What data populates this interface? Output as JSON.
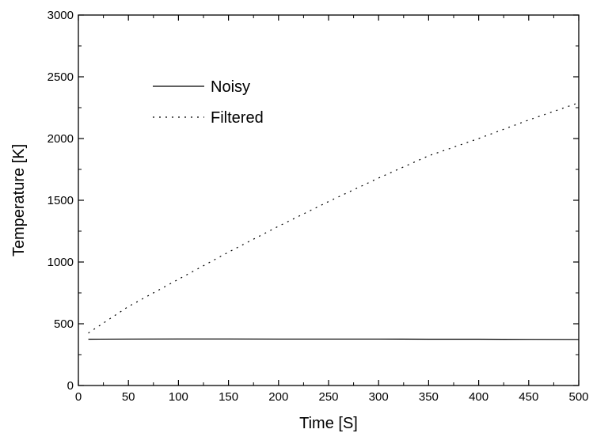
{
  "chart_data": {
    "type": "line",
    "title": "",
    "xlabel": "Time [S]",
    "ylabel": "Temperature [K]",
    "xlim": [
      0,
      500
    ],
    "ylim": [
      0,
      3000
    ],
    "xticks": [
      0,
      50,
      100,
      150,
      200,
      250,
      300,
      350,
      400,
      450,
      500
    ],
    "yticks": [
      0,
      500,
      1000,
      1500,
      2000,
      2500,
      3000
    ],
    "grid": false,
    "legend_position": "top-left",
    "series": [
      {
        "name": "Noisy",
        "style": "solid",
        "color": "#000000",
        "x": [
          10,
          50,
          100,
          150,
          200,
          250,
          300,
          350,
          400,
          450,
          500
        ],
        "y": [
          375,
          376,
          377,
          377,
          376,
          376,
          376,
          375,
          375,
          374,
          373
        ]
      },
      {
        "name": "Filtered",
        "style": "dotted",
        "color": "#000000",
        "x": [
          10,
          50,
          100,
          150,
          200,
          250,
          300,
          350,
          400,
          450,
          500
        ],
        "y": [
          425,
          640,
          860,
          1080,
          1290,
          1490,
          1680,
          1860,
          2000,
          2150,
          2290
        ]
      }
    ]
  }
}
